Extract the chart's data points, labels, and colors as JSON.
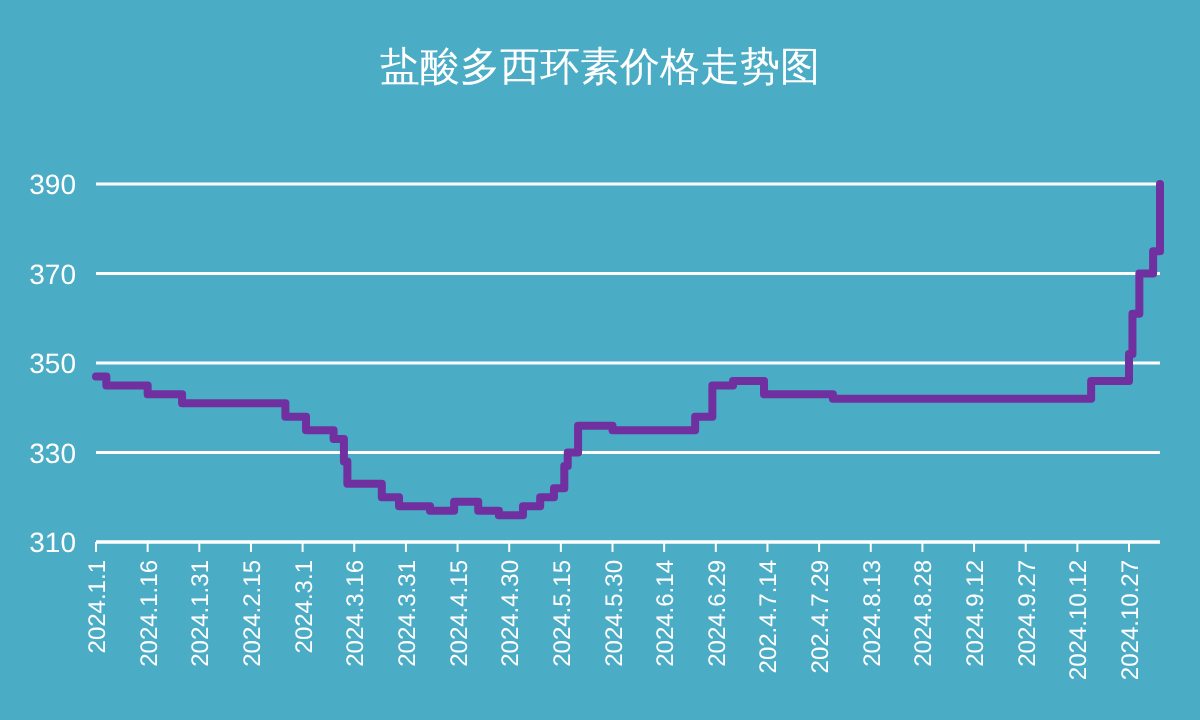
{
  "chart_data": {
    "type": "step",
    "title": "盐酸多西环素价格走势图",
    "x": [
      "2024-01-01",
      "2024-01-04",
      "2024-01-16",
      "2024-01-26",
      "2024-02-25",
      "2024-03-02",
      "2024-03-10",
      "2024-03-13",
      "2024-03-14",
      "2024-03-24",
      "2024-03-29",
      "2024-04-07",
      "2024-04-14",
      "2024-04-21",
      "2024-04-27",
      "2024-05-04",
      "2024-05-09",
      "2024-05-13",
      "2024-05-16",
      "2024-05-17",
      "2024-05-20",
      "2024-05-30",
      "2024-06-23",
      "2024-06-28",
      "2024-07-04",
      "2024-07-13",
      "2024-08-02",
      "2024-10-16",
      "2024-10-27",
      "2024-10-28",
      "2024-10-30",
      "2024-11-03",
      "2024-11-05"
    ],
    "series": [
      {
        "color": "#7030a0",
        "values": [
          347,
          345,
          343,
          341,
          338,
          335,
          333,
          328,
          323,
          320,
          318,
          317,
          319,
          317,
          316,
          318,
          320,
          322,
          327,
          330,
          336,
          335,
          338,
          345,
          346,
          343,
          342,
          346,
          352,
          361,
          370,
          375,
          390
        ]
      }
    ],
    "xlim": [
      "2024-01-01",
      "2024-11-05"
    ],
    "xticks": [
      {
        "value": "2024-01-01",
        "label": "2024.1.1"
      },
      {
        "value": "2024-01-16",
        "label": "2024.1.16"
      },
      {
        "value": "2024-01-31",
        "label": "2024.1.31"
      },
      {
        "value": "2024-02-15",
        "label": "2024.2.15"
      },
      {
        "value": "2024-03-01",
        "label": "2024.3.1"
      },
      {
        "value": "2024-03-16",
        "label": "2024.3.16"
      },
      {
        "value": "2024-03-31",
        "label": "2024.3.31"
      },
      {
        "value": "2024-04-15",
        "label": "2024.4.15"
      },
      {
        "value": "2024-04-30",
        "label": "2024.4.30"
      },
      {
        "value": "2024-05-15",
        "label": "2024.5.15"
      },
      {
        "value": "2024-05-30",
        "label": "2024.5.30"
      },
      {
        "value": "2024-06-14",
        "label": "2024.6.14"
      },
      {
        "value": "2024-06-29",
        "label": "2024.6.29"
      },
      {
        "value": "2024-07-14",
        "label": "202.4.7.14"
      },
      {
        "value": "2024-07-29",
        "label": "202.4.7.29"
      },
      {
        "value": "2024-08-13",
        "label": "2024.8.13"
      },
      {
        "value": "2024-08-28",
        "label": "2024.8.28"
      },
      {
        "value": "2024-09-12",
        "label": "2024.9.12"
      },
      {
        "value": "2024-09-27",
        "label": "2024.9.27"
      },
      {
        "value": "2024-10-12",
        "label": "2024.10.12"
      },
      {
        "value": "2024-10-27",
        "label": "2024.10.27"
      }
    ],
    "ylim": [
      310,
      390
    ],
    "yticks": [
      310,
      330,
      350,
      370,
      390
    ],
    "grid": "y"
  }
}
